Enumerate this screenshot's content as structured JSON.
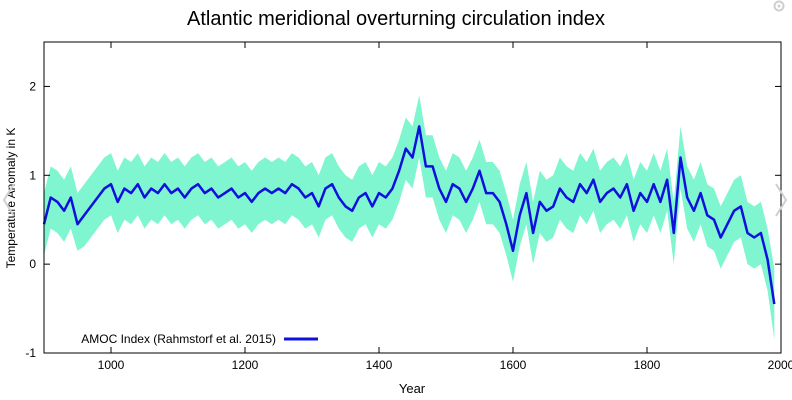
{
  "chart_data": {
    "type": "line",
    "title": "Atlantic meridional overturning circulation index",
    "xlabel": "Year",
    "ylabel": "Temperature Anomaly in K",
    "xlim": [
      900,
      2000
    ],
    "ylim": [
      -1,
      2.5
    ],
    "xticks": [
      1000,
      1200,
      1400,
      1600,
      1800,
      2000
    ],
    "yticks": [
      -1,
      0,
      1,
      2
    ],
    "legend": {
      "position": "bottom-left"
    },
    "colors": {
      "line": "#1010dd",
      "band": "#7ff5d0",
      "axis": "#000000"
    },
    "series": [
      {
        "name": "AMOC Index (Rahmstorf et al. 2015)",
        "x": [
          900,
          910,
          920,
          930,
          940,
          950,
          960,
          970,
          980,
          990,
          1000,
          1010,
          1020,
          1030,
          1040,
          1050,
          1060,
          1070,
          1080,
          1090,
          1100,
          1110,
          1120,
          1130,
          1140,
          1150,
          1160,
          1170,
          1180,
          1190,
          1200,
          1210,
          1220,
          1230,
          1240,
          1250,
          1260,
          1270,
          1280,
          1290,
          1300,
          1310,
          1320,
          1330,
          1340,
          1350,
          1360,
          1370,
          1380,
          1390,
          1400,
          1410,
          1420,
          1430,
          1440,
          1450,
          1460,
          1470,
          1480,
          1490,
          1500,
          1510,
          1520,
          1530,
          1540,
          1550,
          1560,
          1570,
          1580,
          1590,
          1600,
          1610,
          1620,
          1630,
          1640,
          1650,
          1660,
          1670,
          1680,
          1690,
          1700,
          1710,
          1720,
          1730,
          1740,
          1750,
          1760,
          1770,
          1780,
          1790,
          1800,
          1810,
          1820,
          1830,
          1840,
          1850,
          1860,
          1870,
          1880,
          1890,
          1900,
          1910,
          1920,
          1930,
          1940,
          1950,
          1960,
          1970,
          1980,
          1990
        ],
        "y": [
          0.45,
          0.75,
          0.7,
          0.6,
          0.75,
          0.45,
          0.55,
          0.65,
          0.75,
          0.85,
          0.9,
          0.7,
          0.85,
          0.8,
          0.9,
          0.75,
          0.85,
          0.8,
          0.9,
          0.8,
          0.85,
          0.75,
          0.85,
          0.9,
          0.8,
          0.85,
          0.75,
          0.8,
          0.85,
          0.75,
          0.8,
          0.7,
          0.8,
          0.85,
          0.8,
          0.85,
          0.8,
          0.9,
          0.85,
          0.75,
          0.8,
          0.65,
          0.85,
          0.9,
          0.75,
          0.65,
          0.6,
          0.75,
          0.8,
          0.65,
          0.8,
          0.75,
          0.85,
          1.05,
          1.3,
          1.2,
          1.55,
          1.1,
          1.1,
          0.85,
          0.7,
          0.9,
          0.85,
          0.7,
          0.85,
          1.05,
          0.8,
          0.8,
          0.7,
          0.45,
          0.15,
          0.55,
          0.8,
          0.35,
          0.7,
          0.6,
          0.65,
          0.85,
          0.75,
          0.7,
          0.9,
          0.8,
          0.95,
          0.7,
          0.8,
          0.85,
          0.75,
          0.9,
          0.6,
          0.8,
          0.7,
          0.9,
          0.7,
          0.95,
          0.35,
          1.2,
          0.75,
          0.6,
          0.8,
          0.55,
          0.5,
          0.3,
          0.45,
          0.6,
          0.65,
          0.35,
          0.3,
          0.35,
          0.05,
          -0.45
        ],
        "band_lower": [
          0.1,
          0.4,
          0.35,
          0.25,
          0.4,
          0.15,
          0.2,
          0.3,
          0.4,
          0.5,
          0.55,
          0.35,
          0.5,
          0.45,
          0.55,
          0.4,
          0.5,
          0.45,
          0.55,
          0.45,
          0.5,
          0.4,
          0.5,
          0.55,
          0.45,
          0.5,
          0.4,
          0.45,
          0.5,
          0.4,
          0.45,
          0.35,
          0.45,
          0.5,
          0.45,
          0.5,
          0.45,
          0.55,
          0.5,
          0.4,
          0.45,
          0.3,
          0.5,
          0.55,
          0.4,
          0.3,
          0.25,
          0.4,
          0.45,
          0.3,
          0.45,
          0.4,
          0.5,
          0.7,
          0.95,
          0.85,
          1.2,
          0.75,
          0.75,
          0.5,
          0.35,
          0.55,
          0.5,
          0.35,
          0.5,
          0.7,
          0.45,
          0.45,
          0.35,
          0.1,
          -0.2,
          0.2,
          0.45,
          0.0,
          0.35,
          0.25,
          0.3,
          0.5,
          0.4,
          0.35,
          0.55,
          0.45,
          0.6,
          0.35,
          0.45,
          0.5,
          0.4,
          0.55,
          0.25,
          0.45,
          0.35,
          0.55,
          0.35,
          0.6,
          0.0,
          0.85,
          0.4,
          0.25,
          0.45,
          0.2,
          0.15,
          -0.05,
          0.1,
          0.25,
          0.3,
          0.0,
          -0.05,
          0.0,
          -0.3,
          -0.85
        ],
        "band_upper": [
          0.8,
          1.1,
          1.05,
          0.95,
          1.1,
          0.8,
          0.9,
          1.0,
          1.1,
          1.2,
          1.25,
          1.05,
          1.2,
          1.15,
          1.25,
          1.1,
          1.2,
          1.15,
          1.25,
          1.15,
          1.2,
          1.1,
          1.2,
          1.25,
          1.15,
          1.2,
          1.1,
          1.15,
          1.2,
          1.1,
          1.15,
          1.05,
          1.15,
          1.2,
          1.15,
          1.2,
          1.15,
          1.25,
          1.2,
          1.1,
          1.15,
          1.0,
          1.2,
          1.25,
          1.1,
          1.0,
          0.95,
          1.1,
          1.15,
          1.0,
          1.15,
          1.1,
          1.2,
          1.4,
          1.65,
          1.55,
          1.9,
          1.45,
          1.45,
          1.2,
          1.05,
          1.25,
          1.2,
          1.05,
          1.2,
          1.4,
          1.15,
          1.15,
          1.05,
          0.8,
          0.5,
          0.9,
          1.15,
          0.7,
          1.05,
          0.95,
          1.0,
          1.2,
          1.1,
          1.05,
          1.25,
          1.15,
          1.3,
          1.05,
          1.15,
          1.2,
          1.1,
          1.25,
          0.95,
          1.15,
          1.05,
          1.25,
          1.05,
          1.3,
          0.7,
          1.55,
          1.1,
          0.95,
          1.15,
          0.9,
          0.85,
          0.65,
          0.8,
          0.95,
          1.0,
          0.7,
          0.65,
          0.7,
          0.4,
          -0.05
        ]
      }
    ]
  },
  "nav": {
    "prev_icon": "chevron-left-icon",
    "next_icon": "chevron-right-icon",
    "settings_icon": "gear-icon"
  }
}
